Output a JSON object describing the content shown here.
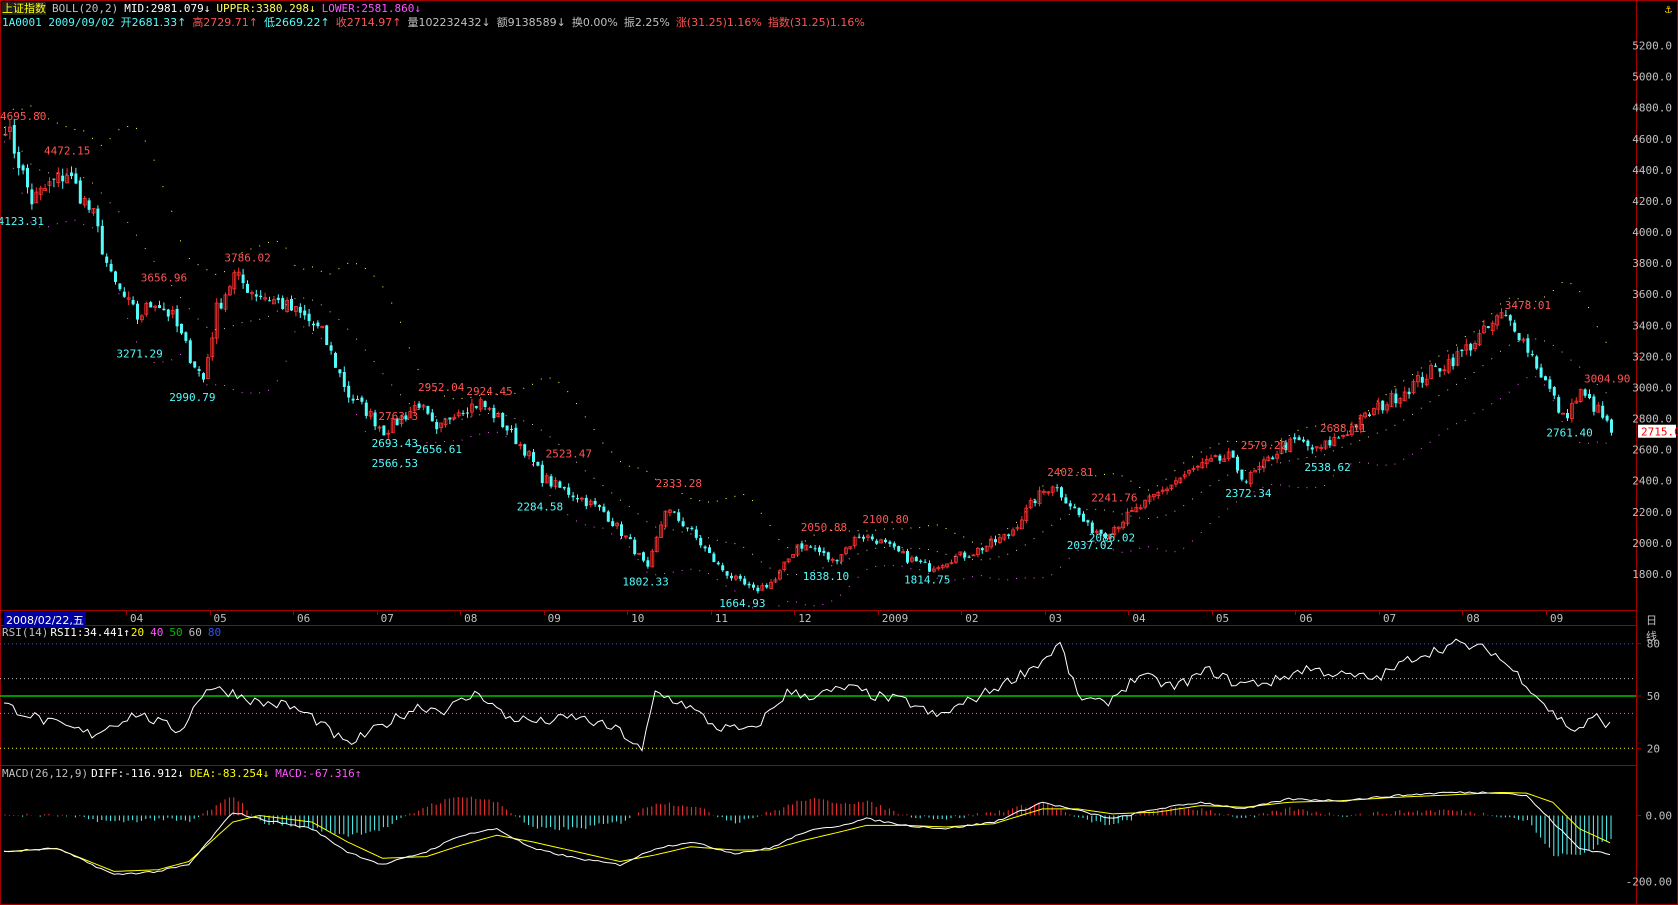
{
  "header": {
    "index_name": "上证指数",
    "boll_label": "BOLL(20,2)",
    "mid": "MID:2981.079↓",
    "upper": "UPPER:3380.298↓",
    "lower": "LOWER:2581.860↓",
    "code_date": "1A0001 2009/09/02",
    "open": "开2681.33↑",
    "high": "高2729.71↑",
    "low": "低2669.22↑",
    "close": "收2714.97↑",
    "volume": "量102232432↓",
    "amount": "额9138589↓",
    "turnover": "换0.00%",
    "amplitude": "振2.25%",
    "change": "涨(31.25)1.16%",
    "index_change": "指数(31.25)1.16%"
  },
  "rsi_header": {
    "label": "RSI(14)",
    "value": "RSI1:34.441↑",
    "levels": [
      "20",
      "40",
      "50",
      "60",
      "80"
    ]
  },
  "macd_header": {
    "label": "MACD(26,12,9)",
    "diff": "DIFF:-116.912↓",
    "dea": "DEA:-83.254↓",
    "macd": "MACD:-67.316↑"
  },
  "x_axis": {
    "date_box": "2008/02/22,五",
    "period_label": "日线",
    "ticks": [
      "04",
      "05",
      "06",
      "07",
      "08",
      "09",
      "10",
      "11",
      "12",
      "2009",
      "02",
      "03",
      "04",
      "05",
      "06",
      "07",
      "08",
      "09"
    ]
  },
  "colors": {
    "up": "#ff3232",
    "down": "#54fcfc",
    "mid": "#c0c0c0",
    "upper": "#ffff54",
    "lower": "#ff54ff",
    "rsi": "#ffffff",
    "fifty": "#00c000",
    "dea": "#ffff00",
    "diff": "#ffffff",
    "frame": "#a00000"
  },
  "chart_data": [
    {
      "type": "candlestick",
      "title": "上证指数 BOLL(20,2)",
      "y_ticks": [
        1800,
        2000,
        2200,
        2400,
        2600,
        2800,
        3000,
        3200,
        3400,
        3600,
        3800,
        4000,
        4200,
        4400,
        4600,
        4800,
        5000,
        5200
      ],
      "ylim": [
        1600,
        5300
      ],
      "last_price": "2715.0",
      "waypoints": [
        [
          0,
          4700
        ],
        [
          3,
          4450
        ],
        [
          6,
          4200
        ],
        [
          10,
          4300
        ],
        [
          14,
          4380
        ],
        [
          20,
          4100
        ],
        [
          24,
          3700
        ],
        [
          30,
          3450
        ],
        [
          34,
          3560
        ],
        [
          38,
          3450
        ],
        [
          42,
          3200
        ],
        [
          45,
          3050
        ],
        [
          48,
          3500
        ],
        [
          52,
          3720
        ],
        [
          56,
          3620
        ],
        [
          62,
          3550
        ],
        [
          68,
          3450
        ],
        [
          72,
          3350
        ],
        [
          75,
          3150
        ],
        [
          78,
          2950
        ],
        [
          82,
          2850
        ],
        [
          86,
          2720
        ],
        [
          90,
          2800
        ],
        [
          94,
          2900
        ],
        [
          98,
          2700
        ],
        [
          102,
          2850
        ],
        [
          108,
          2900
        ],
        [
          112,
          2800
        ],
        [
          118,
          2600
        ],
        [
          122,
          2420
        ],
        [
          126,
          2350
        ],
        [
          130,
          2300
        ],
        [
          136,
          2200
        ],
        [
          142,
          2000
        ],
        [
          146,
          1820
        ],
        [
          150,
          2220
        ],
        [
          155,
          2100
        ],
        [
          162,
          1850
        ],
        [
          166,
          1760
        ],
        [
          170,
          1690
        ],
        [
          175,
          1760
        ],
        [
          180,
          1990
        ],
        [
          184,
          1960
        ],
        [
          188,
          1880
        ],
        [
          194,
          2050
        ],
        [
          198,
          2020
        ],
        [
          205,
          1900
        ],
        [
          210,
          1840
        ],
        [
          215,
          1900
        ],
        [
          220,
          1940
        ],
        [
          228,
          2050
        ],
        [
          234,
          2280
        ],
        [
          238,
          2380
        ],
        [
          242,
          2250
        ],
        [
          246,
          2100
        ],
        [
          250,
          2060
        ],
        [
          254,
          2150
        ],
        [
          260,
          2270
        ],
        [
          266,
          2400
        ],
        [
          272,
          2500
        ],
        [
          278,
          2550
        ],
        [
          282,
          2400
        ],
        [
          286,
          2500
        ],
        [
          290,
          2620
        ],
        [
          294,
          2650
        ],
        [
          298,
          2590
        ],
        [
          304,
          2700
        ],
        [
          310,
          2830
        ],
        [
          318,
          2980
        ],
        [
          324,
          3100
        ],
        [
          330,
          3200
        ],
        [
          336,
          3350
        ],
        [
          340,
          3460
        ],
        [
          343,
          3400
        ],
        [
          347,
          3200
        ],
        [
          351,
          2980
        ],
        [
          354,
          2800
        ],
        [
          358,
          2960
        ],
        [
          362,
          2850
        ],
        [
          365,
          2715
        ]
      ],
      "highs": [
        {
          "x": 0,
          "value": "4695.80"
        },
        {
          "x": 10,
          "value": "4472.15"
        },
        {
          "x": 32,
          "value": "3656.96"
        },
        {
          "x": 51,
          "value": "3786.02"
        },
        {
          "x": 95,
          "value": "2952.04"
        },
        {
          "x": 106,
          "value": "2924.45"
        },
        {
          "x": 124,
          "value": "2523.47"
        },
        {
          "x": 149,
          "value": "2333.28"
        },
        {
          "x": 182,
          "value": "2050.88"
        },
        {
          "x": 196,
          "value": "2100.80"
        },
        {
          "x": 238,
          "value": "2402.81"
        },
        {
          "x": 248,
          "value": "2241.76"
        },
        {
          "x": 282,
          "value": "2579.22"
        },
        {
          "x": 300,
          "value": "2688.11"
        },
        {
          "x": 342,
          "value": "3478.01"
        },
        {
          "x": 360,
          "value": "3004.90"
        },
        {
          "x": 86,
          "value": "2763.3"
        }
      ],
      "lows": [
        {
          "x": 4,
          "value": "4123.31"
        },
        {
          "x": 31,
          "value": "3271.29"
        },
        {
          "x": 43,
          "value": "2990.79"
        },
        {
          "x": 89,
          "value": "2693.43"
        },
        {
          "x": 89,
          "value": "2566.53"
        },
        {
          "x": 99,
          "value": "2656.61"
        },
        {
          "x": 122,
          "value": "2284.58"
        },
        {
          "x": 146,
          "value": "1802.33"
        },
        {
          "x": 168,
          "value": "1664.93"
        },
        {
          "x": 187,
          "value": "1838.10"
        },
        {
          "x": 210,
          "value": "1814.75"
        },
        {
          "x": 247,
          "value": "2037.02"
        },
        {
          "x": 252,
          "value": "2086.02"
        },
        {
          "x": 283,
          "value": "2372.34"
        },
        {
          "x": 301,
          "value": "2538.62"
        },
        {
          "x": 356,
          "value": "2761.40"
        }
      ]
    },
    {
      "type": "line",
      "title": "RSI(14)",
      "y_ticks": [
        20,
        50,
        80
      ],
      "ylim": [
        15,
        85
      ],
      "waypoints": [
        [
          0,
          45
        ],
        [
          10,
          35
        ],
        [
          20,
          28
        ],
        [
          30,
          40
        ],
        [
          40,
          30
        ],
        [
          46,
          55
        ],
        [
          52,
          52
        ],
        [
          58,
          46
        ],
        [
          64,
          45
        ],
        [
          70,
          38
        ],
        [
          78,
          22
        ],
        [
          86,
          33
        ],
        [
          94,
          44
        ],
        [
          100,
          42
        ],
        [
          108,
          52
        ],
        [
          114,
          38
        ],
        [
          122,
          35
        ],
        [
          130,
          38
        ],
        [
          140,
          30
        ],
        [
          145,
          18
        ],
        [
          148,
          52
        ],
        [
          155,
          45
        ],
        [
          162,
          32
        ],
        [
          170,
          30
        ],
        [
          178,
          52
        ],
        [
          184,
          50
        ],
        [
          192,
          55
        ],
        [
          198,
          50
        ],
        [
          205,
          47
        ],
        [
          212,
          38
        ],
        [
          220,
          48
        ],
        [
          228,
          58
        ],
        [
          236,
          70
        ],
        [
          240,
          80
        ],
        [
          244,
          50
        ],
        [
          250,
          45
        ],
        [
          258,
          62
        ],
        [
          266,
          55
        ],
        [
          274,
          65
        ],
        [
          280,
          57
        ],
        [
          288,
          58
        ],
        [
          296,
          66
        ],
        [
          304,
          62
        ],
        [
          312,
          60
        ],
        [
          320,
          72
        ],
        [
          330,
          80
        ],
        [
          338,
          76
        ],
        [
          345,
          60
        ],
        [
          352,
          40
        ],
        [
          357,
          30
        ],
        [
          362,
          38
        ],
        [
          365,
          33
        ]
      ]
    },
    {
      "type": "bar",
      "title": "MACD(26,12,9)",
      "y_ticks": [
        0.0,
        -200.0
      ],
      "ylim": [
        -260,
        120
      ],
      "diff_waypoints": [
        [
          0,
          -110
        ],
        [
          12,
          -100
        ],
        [
          25,
          -180
        ],
        [
          35,
          -170
        ],
        [
          42,
          -150
        ],
        [
          52,
          10
        ],
        [
          58,
          -10
        ],
        [
          70,
          -40
        ],
        [
          78,
          -110
        ],
        [
          86,
          -150
        ],
        [
          96,
          -110
        ],
        [
          104,
          -60
        ],
        [
          112,
          -40
        ],
        [
          120,
          -100
        ],
        [
          130,
          -130
        ],
        [
          140,
          -150
        ],
        [
          148,
          -100
        ],
        [
          156,
          -80
        ],
        [
          166,
          -115
        ],
        [
          174,
          -100
        ],
        [
          182,
          -50
        ],
        [
          190,
          -30
        ],
        [
          196,
          -10
        ],
        [
          205,
          -30
        ],
        [
          214,
          -40
        ],
        [
          225,
          -20
        ],
        [
          236,
          40
        ],
        [
          244,
          15
        ],
        [
          252,
          -10
        ],
        [
          262,
          20
        ],
        [
          272,
          40
        ],
        [
          282,
          20
        ],
        [
          292,
          50
        ],
        [
          304,
          45
        ],
        [
          316,
          60
        ],
        [
          328,
          70
        ],
        [
          340,
          70
        ],
        [
          346,
          60
        ],
        [
          352,
          -20
        ],
        [
          358,
          -100
        ],
        [
          365,
          -117
        ]
      ],
      "dea_waypoints": [
        [
          0,
          -110
        ],
        [
          12,
          -100
        ],
        [
          25,
          -170
        ],
        [
          35,
          -165
        ],
        [
          42,
          -140
        ],
        [
          52,
          -20
        ],
        [
          58,
          0
        ],
        [
          70,
          -20
        ],
        [
          78,
          -80
        ],
        [
          86,
          -130
        ],
        [
          96,
          -125
        ],
        [
          104,
          -90
        ],
        [
          112,
          -60
        ],
        [
          120,
          -80
        ],
        [
          130,
          -110
        ],
        [
          140,
          -140
        ],
        [
          148,
          -120
        ],
        [
          156,
          -95
        ],
        [
          166,
          -105
        ],
        [
          174,
          -105
        ],
        [
          182,
          -75
        ],
        [
          190,
          -50
        ],
        [
          196,
          -30
        ],
        [
          205,
          -30
        ],
        [
          214,
          -35
        ],
        [
          225,
          -25
        ],
        [
          236,
          20
        ],
        [
          244,
          20
        ],
        [
          252,
          5
        ],
        [
          262,
          10
        ],
        [
          272,
          30
        ],
        [
          282,
          25
        ],
        [
          292,
          40
        ],
        [
          304,
          45
        ],
        [
          316,
          55
        ],
        [
          328,
          62
        ],
        [
          340,
          70
        ],
        [
          346,
          68
        ],
        [
          352,
          40
        ],
        [
          358,
          -40
        ],
        [
          365,
          -83
        ]
      ]
    }
  ]
}
